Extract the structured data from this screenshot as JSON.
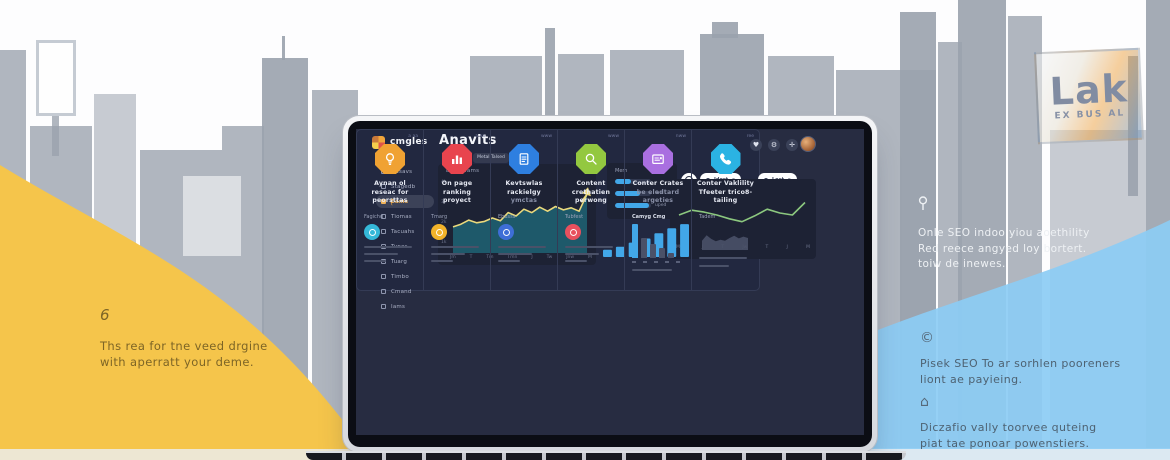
{
  "background": {
    "billboard": {
      "title": "Lak",
      "subtitle": "EX BUS AL"
    },
    "left_note": {
      "icon_glyph": "6",
      "line1": "Ths rea for tne veed drgine",
      "line2": "with aperratt your deme."
    },
    "right_note": {
      "line1": "Onle SEO indoo yiou aoethility",
      "line2": "Red reece angyed loy bortert.",
      "line3": "toiw de inewes."
    },
    "blue_note_1": {
      "icon_glyph": "©",
      "line1": "Pisek SEO To ar sorhlen pooreners",
      "line2": "liont ae payieing."
    },
    "blue_note_2": {
      "icon_glyph": "⌂",
      "line1": "Diczafio vally toorvee quteing",
      "line2": "piat tae ponoar powenstiers."
    }
  },
  "icons": {
    "heart": "♥",
    "gear": "⚙",
    "shield": "✛",
    "chevron_down": "▾",
    "active_bracket": "("
  },
  "dashboard": {
    "brand": "cmgles",
    "title": "Anavits",
    "tabs": [
      {
        "label": "",
        "active": true
      },
      {
        "label": "Metal Talsed",
        "active": false
      }
    ],
    "sidebar": {
      "items": [
        {
          "label": "Dasavs"
        },
        {
          "label": "Stagedb"
        },
        {
          "label": "Eams",
          "active": true
        },
        {
          "label": "Tiomas"
        },
        {
          "label": "Tacuahs"
        },
        {
          "label": "Tunes"
        },
        {
          "label": "Tuarg"
        },
        {
          "label": "Timbo"
        },
        {
          "label": "Cmand"
        },
        {
          "label": "Iams"
        }
      ]
    },
    "main_chart": {
      "title": "Degrtpams",
      "y_ticks": [
        "4k",
        "3k",
        "2k",
        "1k"
      ],
      "x_ticks": [
        "Jm",
        "T",
        "Tm",
        "Tmn",
        "J",
        "Tw",
        "Jnw",
        "M"
      ]
    },
    "stats_panel": {
      "title": "Mem",
      "bar_labels": [
        "",
        "fev",
        "uped"
      ]
    },
    "filters": [
      {
        "label": "Jdest"
      },
      {
        "label": "Lost"
      }
    ],
    "green_chart": {
      "x_ticks": [
        "Mw",
        "J",
        "T",
        "Jw",
        "T",
        "J",
        "M"
      ]
    },
    "cards": [
      {
        "corner_tag": "a aa",
        "accent": "#F0A233",
        "title": [
          "Aynan ol",
          "reseac for",
          "peorsttas"
        ],
        "sub_label": "Fagichd",
        "mini_color": "#35B8D8"
      },
      {
        "corner_tag": "a aa",
        "accent": "#E8444E",
        "title": [
          "On page",
          "ranking",
          "proyect"
        ],
        "sub_label": "Tmarg",
        "mini_color": "#F2B32A"
      },
      {
        "corner_tag": "www",
        "accent": "#2E7FE0",
        "title": [
          "Kevtswlas",
          "rackielgy",
          "ymctas"
        ],
        "sub_label": "Ebusss",
        "mini_color": "#3E6ED6"
      },
      {
        "corner_tag": "www",
        "accent": "#93C840",
        "title": [
          "Content",
          "crethatien",
          "perwong"
        ],
        "sub_label": "Tubfest",
        "mini_color": "#E8505E"
      },
      {
        "corner_tag": "nww",
        "accent": "#A96FE0",
        "title": [
          "Conter Crates",
          "be eledtard",
          "argeties"
        ],
        "sub_label": "Camyg Cmg",
        "mini_color": ""
      },
      {
        "corner_tag": "ree",
        "accent": "#2BB3E3",
        "title": [
          "Conter Vaklility",
          "Tfeeter trico8-",
          "tailing"
        ],
        "sub_label": "Tadem",
        "mini_color": ""
      }
    ]
  },
  "chart_data": [
    {
      "name": "visits-area",
      "type": "area",
      "title": "Degrtpams",
      "x": [
        1,
        2,
        3,
        4,
        5,
        6,
        7,
        8,
        9,
        10,
        11,
        12,
        13,
        14,
        15,
        16,
        17,
        18
      ],
      "values": [
        34,
        38,
        44,
        40,
        42,
        47,
        43,
        55,
        50,
        60,
        55,
        63,
        57,
        64,
        59,
        62,
        57,
        82
      ],
      "ylim": [
        0,
        100
      ],
      "grid": false,
      "line_color": "#EAD97C",
      "fill_color": "#1F5F70",
      "annotation": "up-arrow at last point"
    },
    {
      "name": "volume-bars",
      "type": "bar",
      "categories": [
        "1",
        "2",
        "3",
        "4",
        "5",
        "6",
        "7"
      ],
      "values": [
        14,
        20,
        28,
        36,
        46,
        56,
        64
      ],
      "ylim": [
        0,
        70
      ],
      "bar_color": "#42A7E8"
    },
    {
      "name": "trend-line",
      "type": "line",
      "x": [
        1,
        2,
        3,
        4,
        5,
        6,
        7,
        8,
        9,
        10,
        11
      ],
      "values": [
        48,
        58,
        54,
        48,
        40,
        34,
        46,
        60,
        52,
        48,
        74
      ],
      "ylim": [
        0,
        100
      ],
      "line_color": "#8CC87F"
    },
    {
      "name": "engagement-bars",
      "type": "bar",
      "orientation": "horizontal",
      "categories": [
        "",
        "fev",
        "uped"
      ],
      "values": [
        45,
        70,
        95
      ],
      "ylim": [
        0,
        100
      ],
      "bar_color": "#42A7E8"
    },
    {
      "name": "campaign-mini-bars",
      "type": "bar",
      "categories": [
        "a",
        "b",
        "c",
        "d",
        "e"
      ],
      "values": [
        100,
        58,
        42,
        28,
        16
      ],
      "ylim": [
        0,
        100
      ],
      "bar_color": "#42A7E8",
      "note": "first bar highlighted, rest gray"
    },
    {
      "name": "reach-sparkline",
      "type": "area",
      "x": [
        1,
        2,
        3,
        4,
        5,
        6,
        7,
        8,
        9,
        10,
        11
      ],
      "values": [
        35,
        65,
        45,
        32,
        40,
        35,
        50,
        62,
        48,
        58,
        50
      ],
      "ylim": [
        0,
        100
      ],
      "fill_color": "#4A5168"
    }
  ]
}
